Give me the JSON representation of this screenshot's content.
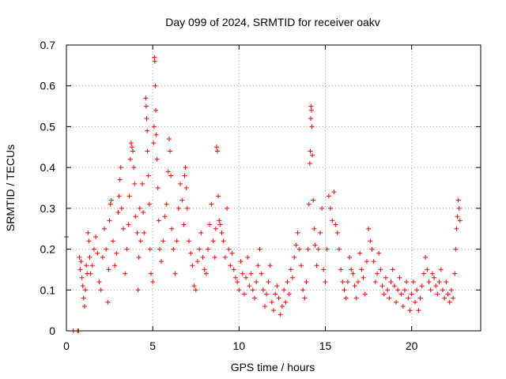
{
  "chart_data": {
    "type": "scatter",
    "title": "Day 099 of 2024, SRMTID for receiver oakv",
    "xlabel": "GPS time / hours",
    "ylabel": "SRMTID / TECUs",
    "xlim": [
      0,
      24
    ],
    "ylim": [
      0,
      0.7
    ],
    "xticks": [
      0,
      5,
      10,
      15,
      20
    ],
    "xtick_labels": [
      "0",
      "5",
      "10",
      "15",
      "20"
    ],
    "yticks": [
      0,
      0.1,
      0.2,
      0.3,
      0.4,
      0.5,
      0.6,
      0.7
    ],
    "ytick_labels": [
      "0",
      "0.1",
      "0.2",
      "0.3",
      "0.4",
      "0.5",
      "0.6",
      "0.7"
    ],
    "grid": true,
    "marker": "+",
    "color": "#ff0000",
    "series": [
      {
        "name": "SRMTID",
        "points": [
          [
            0.0,
            0.23
          ],
          [
            0.4,
            0.0
          ],
          [
            0.65,
            0.0
          ],
          [
            0.7,
            0.0
          ],
          [
            0.75,
            0.18
          ],
          [
            0.8,
            0.15
          ],
          [
            0.85,
            0.17
          ],
          [
            0.9,
            0.13
          ],
          [
            0.95,
            0.11
          ],
          [
            1.0,
            0.08
          ],
          [
            1.05,
            0.06
          ],
          [
            1.1,
            0.1
          ],
          [
            1.15,
            0.16
          ],
          [
            1.2,
            0.14
          ],
          [
            1.25,
            0.24
          ],
          [
            1.3,
            0.22
          ],
          [
            1.35,
            0.18
          ],
          [
            1.4,
            0.14
          ],
          [
            1.5,
            0.16
          ],
          [
            1.6,
            0.2
          ],
          [
            1.7,
            0.23
          ],
          [
            1.8,
            0.19
          ],
          [
            1.9,
            0.12
          ],
          [
            2.0,
            0.1
          ],
          [
            2.1,
            0.18
          ],
          [
            2.2,
            0.25
          ],
          [
            2.3,
            0.2
          ],
          [
            2.4,
            0.07
          ],
          [
            2.45,
            0.15
          ],
          [
            2.5,
            0.27
          ],
          [
            2.55,
            0.31
          ],
          [
            2.6,
            0.32
          ],
          [
            2.7,
            0.22
          ],
          [
            2.8,
            0.16
          ],
          [
            2.9,
            0.19
          ],
          [
            3.0,
            0.29
          ],
          [
            3.05,
            0.33
          ],
          [
            3.1,
            0.37
          ],
          [
            3.15,
            0.4
          ],
          [
            3.2,
            0.3
          ],
          [
            3.3,
            0.25
          ],
          [
            3.4,
            0.14
          ],
          [
            3.5,
            0.2
          ],
          [
            3.6,
            0.26
          ],
          [
            3.65,
            0.33
          ],
          [
            3.7,
            0.42
          ],
          [
            3.75,
            0.46
          ],
          [
            3.8,
            0.45
          ],
          [
            3.85,
            0.44
          ],
          [
            3.9,
            0.4
          ],
          [
            3.95,
            0.36
          ],
          [
            4.0,
            0.28
          ],
          [
            4.1,
            0.24
          ],
          [
            4.15,
            0.1
          ],
          [
            4.2,
            0.18
          ],
          [
            4.25,
            0.3
          ],
          [
            4.3,
            0.22
          ],
          [
            4.4,
            0.36
          ],
          [
            4.45,
            0.29
          ],
          [
            4.5,
            0.24
          ],
          [
            4.6,
            0.57
          ],
          [
            4.62,
            0.55
          ],
          [
            4.65,
            0.52
          ],
          [
            4.68,
            0.49
          ],
          [
            4.7,
            0.44
          ],
          [
            4.75,
            0.38
          ],
          [
            4.8,
            0.31
          ],
          [
            4.85,
            0.2
          ],
          [
            4.9,
            0.14
          ],
          [
            5.0,
            0.12
          ],
          [
            5.05,
            0.46
          ],
          [
            5.08,
            0.5
          ],
          [
            5.1,
            0.67
          ],
          [
            5.12,
            0.66
          ],
          [
            5.15,
            0.6
          ],
          [
            5.18,
            0.54
          ],
          [
            5.2,
            0.48
          ],
          [
            5.25,
            0.42
          ],
          [
            5.3,
            0.35
          ],
          [
            5.35,
            0.27
          ],
          [
            5.4,
            0.2
          ],
          [
            5.5,
            0.17
          ],
          [
            5.6,
            0.22
          ],
          [
            5.7,
            0.28
          ],
          [
            5.8,
            0.31
          ],
          [
            5.9,
            0.39
          ],
          [
            5.95,
            0.47
          ],
          [
            6.0,
            0.44
          ],
          [
            6.05,
            0.38
          ],
          [
            6.1,
            0.25
          ],
          [
            6.2,
            0.2
          ],
          [
            6.3,
            0.14
          ],
          [
            6.4,
            0.22
          ],
          [
            6.5,
            0.3
          ],
          [
            6.6,
            0.36
          ],
          [
            6.7,
            0.32
          ],
          [
            6.8,
            0.26
          ],
          [
            6.85,
            0.38
          ],
          [
            6.9,
            0.4
          ],
          [
            6.95,
            0.35
          ],
          [
            7.0,
            0.3
          ],
          [
            7.1,
            0.22
          ],
          [
            7.2,
            0.19
          ],
          [
            7.3,
            0.16
          ],
          [
            7.4,
            0.11
          ],
          [
            7.5,
            0.1
          ],
          [
            7.6,
            0.17
          ],
          [
            7.7,
            0.2
          ],
          [
            7.8,
            0.24
          ],
          [
            7.9,
            0.18
          ],
          [
            8.0,
            0.15
          ],
          [
            8.1,
            0.14
          ],
          [
            8.2,
            0.2
          ],
          [
            8.3,
            0.26
          ],
          [
            8.4,
            0.31
          ],
          [
            8.5,
            0.22
          ],
          [
            8.6,
            0.18
          ],
          [
            8.65,
            0.25
          ],
          [
            8.7,
            0.45
          ],
          [
            8.75,
            0.44
          ],
          [
            8.8,
            0.33
          ],
          [
            8.85,
            0.27
          ],
          [
            8.9,
            0.26
          ],
          [
            9.0,
            0.24
          ],
          [
            9.1,
            0.22
          ],
          [
            9.2,
            0.18
          ],
          [
            9.3,
            0.3
          ],
          [
            9.4,
            0.2
          ],
          [
            9.5,
            0.16
          ],
          [
            9.6,
            0.19
          ],
          [
            9.7,
            0.15
          ],
          [
            9.8,
            0.13
          ],
          [
            9.9,
            0.12
          ],
          [
            10.0,
            0.1
          ],
          [
            10.1,
            0.17
          ],
          [
            10.2,
            0.14
          ],
          [
            10.3,
            0.09
          ],
          [
            10.4,
            0.13
          ],
          [
            10.5,
            0.18
          ],
          [
            10.6,
            0.11
          ],
          [
            10.7,
            0.14
          ],
          [
            10.8,
            0.1
          ],
          [
            10.9,
            0.08
          ],
          [
            11.0,
            0.12
          ],
          [
            11.1,
            0.16
          ],
          [
            11.2,
            0.2
          ],
          [
            11.3,
            0.14
          ],
          [
            11.4,
            0.1
          ],
          [
            11.5,
            0.06
          ],
          [
            11.6,
            0.09
          ],
          [
            11.7,
            0.12
          ],
          [
            11.8,
            0.16
          ],
          [
            11.9,
            0.07
          ],
          [
            12.0,
            0.05
          ],
          [
            12.1,
            0.09
          ],
          [
            12.2,
            0.11
          ],
          [
            12.3,
            0.08
          ],
          [
            12.4,
            0.04
          ],
          [
            12.5,
            0.06
          ],
          [
            12.6,
            0.1
          ],
          [
            12.7,
            0.07
          ],
          [
            12.8,
            0.12
          ],
          [
            12.9,
            0.09
          ],
          [
            13.0,
            0.15
          ],
          [
            13.1,
            0.13
          ],
          [
            13.2,
            0.18
          ],
          [
            13.3,
            0.21
          ],
          [
            13.4,
            0.24
          ],
          [
            13.5,
            0.2
          ],
          [
            13.6,
            0.16
          ],
          [
            13.7,
            0.1
          ],
          [
            13.8,
            0.08
          ],
          [
            13.9,
            0.12
          ],
          [
            14.0,
            0.2
          ],
          [
            14.05,
            0.31
          ],
          [
            14.1,
            0.41
          ],
          [
            14.13,
            0.44
          ],
          [
            14.15,
            0.52
          ],
          [
            14.17,
            0.55
          ],
          [
            14.2,
            0.54
          ],
          [
            14.22,
            0.5
          ],
          [
            14.25,
            0.43
          ],
          [
            14.3,
            0.32
          ],
          [
            14.35,
            0.25
          ],
          [
            14.4,
            0.21
          ],
          [
            14.5,
            0.16
          ],
          [
            14.6,
            0.2
          ],
          [
            14.7,
            0.24
          ],
          [
            14.8,
            0.3
          ],
          [
            14.9,
            0.15
          ],
          [
            15.0,
            0.12
          ],
          [
            15.1,
            0.2
          ],
          [
            15.2,
            0.33
          ],
          [
            15.3,
            0.3
          ],
          [
            15.4,
            0.27
          ],
          [
            15.5,
            0.34
          ],
          [
            15.6,
            0.26
          ],
          [
            15.7,
            0.24
          ],
          [
            15.8,
            0.2
          ],
          [
            15.9,
            0.15
          ],
          [
            16.0,
            0.12
          ],
          [
            16.1,
            0.1
          ],
          [
            16.2,
            0.08
          ],
          [
            16.3,
            0.12
          ],
          [
            16.4,
            0.18
          ],
          [
            16.5,
            0.15
          ],
          [
            16.6,
            0.14
          ],
          [
            16.7,
            0.11
          ],
          [
            16.8,
            0.08
          ],
          [
            16.9,
            0.12
          ],
          [
            17.0,
            0.19
          ],
          [
            17.1,
            0.15
          ],
          [
            17.2,
            0.13
          ],
          [
            17.3,
            0.09
          ],
          [
            17.4,
            0.17
          ],
          [
            17.5,
            0.25
          ],
          [
            17.6,
            0.22
          ],
          [
            17.7,
            0.2
          ],
          [
            17.8,
            0.17
          ],
          [
            17.9,
            0.12
          ],
          [
            18.0,
            0.14
          ],
          [
            18.1,
            0.19
          ],
          [
            18.2,
            0.15
          ],
          [
            18.3,
            0.11
          ],
          [
            18.4,
            0.09
          ],
          [
            18.5,
            0.13
          ],
          [
            18.6,
            0.1
          ],
          [
            18.7,
            0.08
          ],
          [
            18.8,
            0.12
          ],
          [
            18.9,
            0.15
          ],
          [
            19.0,
            0.11
          ],
          [
            19.1,
            0.07
          ],
          [
            19.2,
            0.1
          ],
          [
            19.3,
            0.13
          ],
          [
            19.4,
            0.09
          ],
          [
            19.5,
            0.06
          ],
          [
            19.6,
            0.1
          ],
          [
            19.7,
            0.12
          ],
          [
            19.8,
            0.08
          ],
          [
            19.9,
            0.05
          ],
          [
            20.0,
            0.09
          ],
          [
            20.1,
            0.12
          ],
          [
            20.2,
            0.07
          ],
          [
            20.3,
            0.1
          ],
          [
            20.4,
            0.05
          ],
          [
            20.5,
            0.08
          ],
          [
            20.6,
            0.11
          ],
          [
            20.7,
            0.14
          ],
          [
            20.8,
            0.18
          ],
          [
            20.9,
            0.15
          ],
          [
            21.0,
            0.12
          ],
          [
            21.1,
            0.1
          ],
          [
            21.2,
            0.14
          ],
          [
            21.3,
            0.13
          ],
          [
            21.4,
            0.11
          ],
          [
            21.5,
            0.09
          ],
          [
            21.6,
            0.12
          ],
          [
            21.7,
            0.15
          ],
          [
            21.8,
            0.1
          ],
          [
            21.9,
            0.08
          ],
          [
            22.0,
            0.12
          ],
          [
            22.1,
            0.09
          ],
          [
            22.2,
            0.07
          ],
          [
            22.3,
            0.1
          ],
          [
            22.4,
            0.08
          ],
          [
            22.5,
            0.14
          ],
          [
            22.55,
            0.2
          ],
          [
            22.6,
            0.25
          ],
          [
            22.65,
            0.28
          ],
          [
            22.7,
            0.32
          ],
          [
            22.75,
            0.3
          ],
          [
            22.8,
            0.27
          ]
        ]
      }
    ]
  }
}
